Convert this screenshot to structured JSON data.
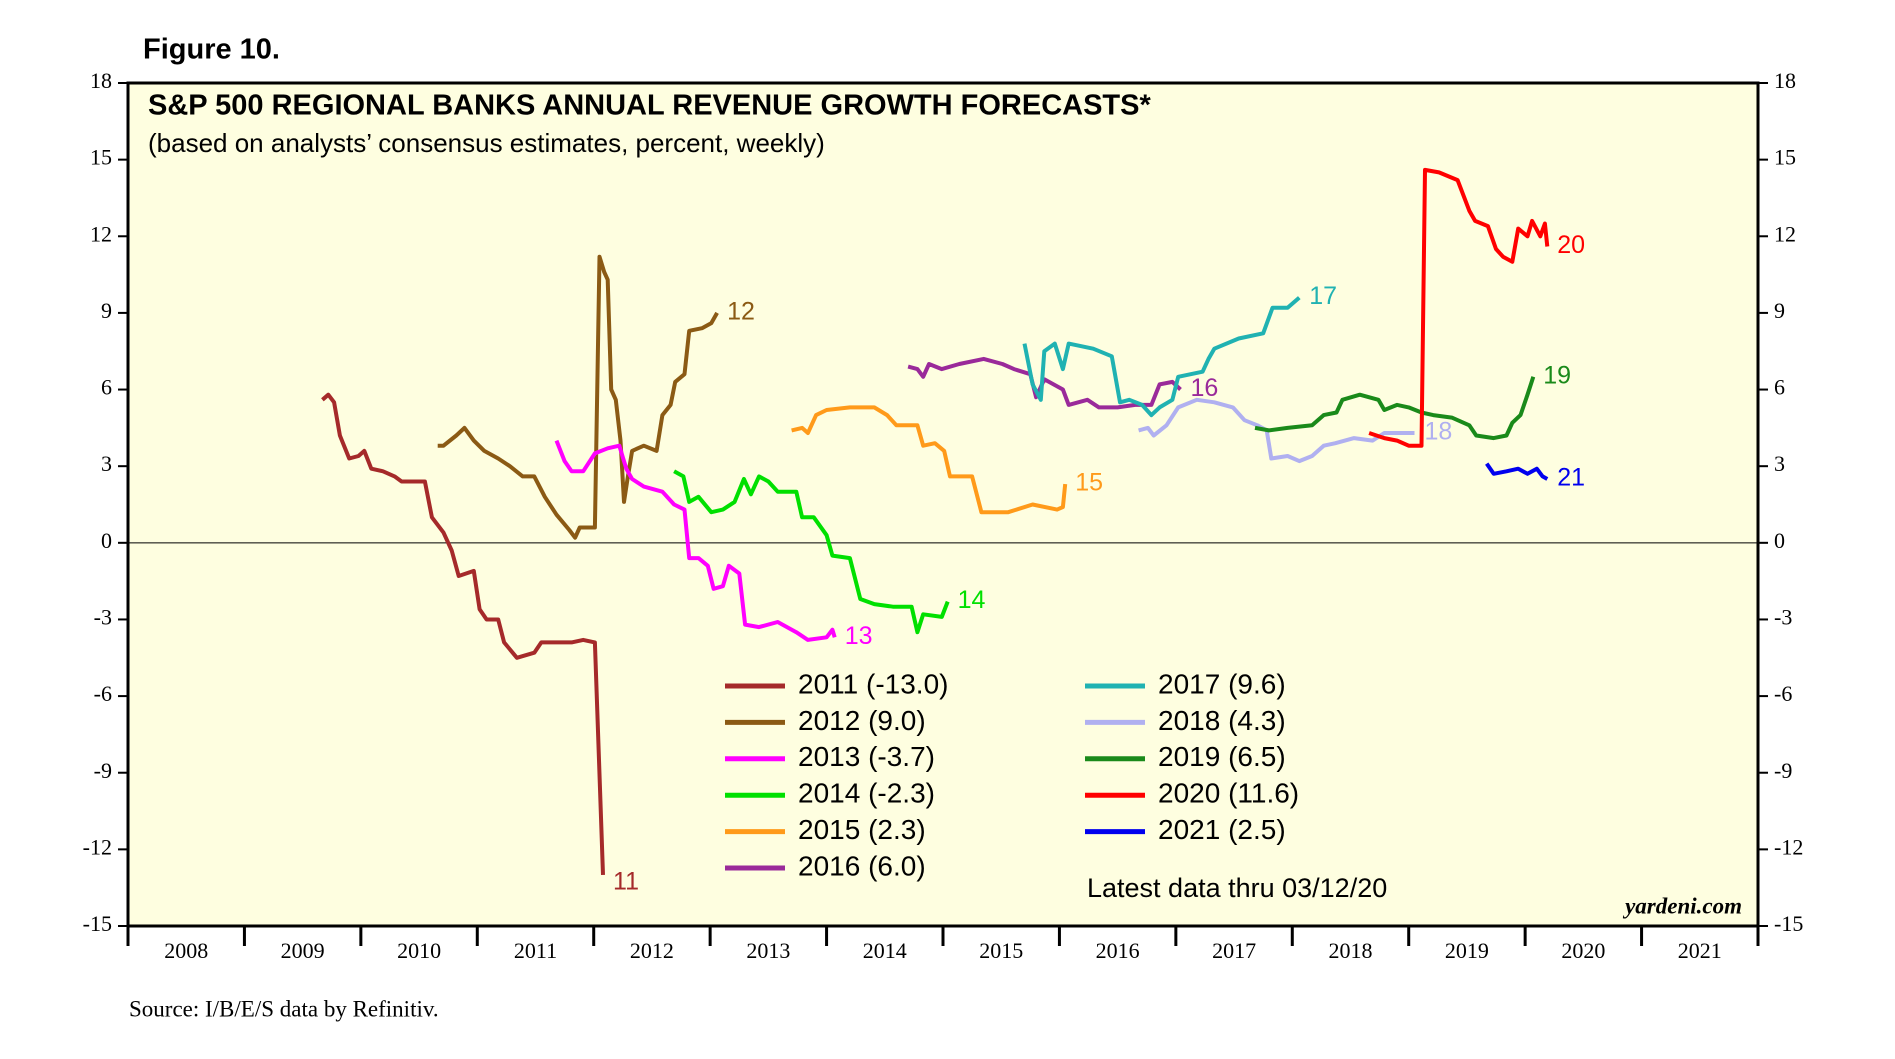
{
  "chart_data": {
    "type": "line",
    "figure_label": "Figure 10.",
    "title": "S&P 500 REGIONAL BANKS ANNUAL REVENUE GROWTH FORECASTS*",
    "subtitle": "(based on analysts’ consensus estimates, percent, weekly)",
    "annotation": "Latest data thru 03/12/20",
    "brand": "yardeni.com",
    "source": "Source: I/B/E/S data by Refinitiv.",
    "xlim": [
      2008,
      2022
    ],
    "xticks": [
      {
        "value": 2008.5,
        "label": "2008"
      },
      {
        "value": 2009.5,
        "label": "2009"
      },
      {
        "value": 2010.5,
        "label": "2010"
      },
      {
        "value": 2011.5,
        "label": "2011"
      },
      {
        "value": 2012.5,
        "label": "2012"
      },
      {
        "value": 2013.5,
        "label": "2013"
      },
      {
        "value": 2014.5,
        "label": "2014"
      },
      {
        "value": 2015.5,
        "label": "2015"
      },
      {
        "value": 2016.5,
        "label": "2016"
      },
      {
        "value": 2017.5,
        "label": "2017"
      },
      {
        "value": 2018.5,
        "label": "2018"
      },
      {
        "value": 2019.5,
        "label": "2019"
      },
      {
        "value": 2020.5,
        "label": "2020"
      },
      {
        "value": 2021.5,
        "label": "2021"
      }
    ],
    "ylim": [
      -15,
      18
    ],
    "yticks": [
      -15,
      -12,
      -9,
      -6,
      -3,
      0,
      3,
      6,
      9,
      12,
      15,
      18
    ],
    "reference_line": 0,
    "background": "#fefee0",
    "series": [
      {
        "name": "2011 (-13.0)",
        "label": "11",
        "color": "#a52a2a",
        "x": [
          2009.67,
          2009.72,
          2009.77,
          2009.82,
          2009.9,
          2009.98,
          2010.03,
          2010.09,
          2010.19,
          2010.29,
          2010.35,
          2010.55,
          2010.61,
          2010.71,
          2010.78,
          2010.84,
          2010.97,
          2011.02,
          2011.08,
          2011.18,
          2011.23,
          2011.34,
          2011.49,
          2011.55,
          2011.81,
          2011.91,
          2012.01,
          2012.08
        ],
        "values": [
          5.6,
          5.8,
          5.5,
          4.2,
          3.3,
          3.4,
          3.6,
          2.9,
          2.8,
          2.6,
          2.4,
          2.4,
          1.0,
          0.4,
          -0.3,
          -1.3,
          -1.1,
          -2.6,
          -3.0,
          -3.0,
          -3.9,
          -4.5,
          -4.3,
          -3.9,
          -3.9,
          -3.8,
          -3.9,
          -13.0
        ]
      },
      {
        "name": "2012 (9.0)",
        "label": "12",
        "color": "#8b5a14",
        "x": [
          2010.66,
          2010.71,
          2010.82,
          2010.89,
          2010.97,
          2011.06,
          2011.18,
          2011.28,
          2011.39,
          2011.49,
          2011.58,
          2011.68,
          2011.79,
          2011.84,
          2011.88,
          2012.01,
          2012.05,
          2012.09,
          2012.12,
          2012.15,
          2012.19,
          2012.23,
          2012.26,
          2012.29,
          2012.33,
          2012.43,
          2012.54,
          2012.59,
          2012.66,
          2012.7,
          2012.78,
          2012.82,
          2012.93,
          2013.01,
          2013.06
        ],
        "values": [
          3.8,
          3.8,
          4.2,
          4.5,
          4.0,
          3.6,
          3.3,
          3.0,
          2.6,
          2.6,
          1.8,
          1.1,
          0.5,
          0.2,
          0.6,
          0.6,
          11.2,
          10.6,
          10.3,
          6.0,
          5.6,
          4.0,
          1.6,
          2.5,
          3.6,
          3.8,
          3.6,
          5.0,
          5.4,
          6.3,
          6.6,
          8.3,
          8.4,
          8.6,
          9.0
        ]
      },
      {
        "name": "2013 (-3.7)",
        "label": "13",
        "color": "#ff00ff",
        "x": [
          2011.68,
          2011.75,
          2011.81,
          2011.91,
          2012.01,
          2012.12,
          2012.22,
          2012.28,
          2012.33,
          2012.43,
          2012.59,
          2012.69,
          2012.78,
          2012.82,
          2012.9,
          2012.98,
          2013.03,
          2013.11,
          2013.16,
          2013.25,
          2013.3,
          2013.42,
          2013.58,
          2013.74,
          2013.84,
          2014.0,
          2014.05,
          2014.07
        ],
        "values": [
          4.0,
          3.2,
          2.8,
          2.8,
          3.5,
          3.7,
          3.8,
          2.9,
          2.5,
          2.2,
          2.0,
          1.5,
          1.3,
          -0.6,
          -0.6,
          -0.9,
          -1.8,
          -1.7,
          -0.9,
          -1.2,
          -3.2,
          -3.3,
          -3.1,
          -3.5,
          -3.8,
          -3.7,
          -3.4,
          -3.7
        ]
      },
      {
        "name": "2014 (-2.3)",
        "label": "14",
        "color": "#00e000",
        "x": [
          2012.69,
          2012.77,
          2012.82,
          2012.9,
          2013.01,
          2013.11,
          2013.21,
          2013.29,
          2013.35,
          2013.42,
          2013.5,
          2013.58,
          2013.74,
          2013.79,
          2013.89,
          2014.0,
          2014.05,
          2014.2,
          2014.29,
          2014.41,
          2014.57,
          2014.73,
          2014.78,
          2014.83,
          2014.99,
          2015.04
        ],
        "values": [
          2.8,
          2.6,
          1.6,
          1.8,
          1.2,
          1.3,
          1.6,
          2.5,
          1.9,
          2.6,
          2.4,
          2.0,
          2.0,
          1.0,
          1.0,
          0.3,
          -0.5,
          -0.6,
          -2.2,
          -2.4,
          -2.5,
          -2.5,
          -3.5,
          -2.8,
          -2.9,
          -2.3
        ]
      },
      {
        "name": "2015 (2.3)",
        "label": "15",
        "color": "#ff9a1a",
        "x": [
          2013.7,
          2013.79,
          2013.84,
          2013.91,
          2014.0,
          2014.2,
          2014.41,
          2014.52,
          2014.6,
          2014.78,
          2014.83,
          2014.93,
          2015.01,
          2015.06,
          2015.25,
          2015.33,
          2015.56,
          2015.77,
          2015.98,
          2016.03,
          2016.05
        ],
        "values": [
          4.4,
          4.5,
          4.3,
          5.0,
          5.2,
          5.3,
          5.3,
          5.0,
          4.6,
          4.6,
          3.8,
          3.9,
          3.6,
          2.6,
          2.6,
          1.2,
          1.2,
          1.5,
          1.3,
          1.4,
          2.3
        ]
      },
      {
        "name": "2016 (6.0)",
        "label": "16",
        "color": "#9a2a9a",
        "x": [
          2014.7,
          2014.78,
          2014.83,
          2014.88,
          2014.99,
          2015.14,
          2015.35,
          2015.51,
          2015.61,
          2015.75,
          2015.8,
          2015.87,
          2016.03,
          2016.08,
          2016.24,
          2016.34,
          2016.5,
          2016.65,
          2016.79,
          2016.86,
          2016.97,
          2017.04
        ],
        "values": [
          6.9,
          6.8,
          6.5,
          7.0,
          6.8,
          7.0,
          7.2,
          7.0,
          6.8,
          6.6,
          5.7,
          6.4,
          6.0,
          5.4,
          5.6,
          5.3,
          5.3,
          5.4,
          5.4,
          6.2,
          6.3,
          6.0
        ]
      },
      {
        "name": "2017 (9.6)",
        "label": "17",
        "color": "#20b2b2",
        "x": [
          2015.7,
          2015.77,
          2015.84,
          2015.87,
          2015.96,
          2016.03,
          2016.08,
          2016.29,
          2016.45,
          2016.52,
          2016.6,
          2016.71,
          2016.79,
          2016.86,
          2016.97,
          2017.02,
          2017.23,
          2017.28,
          2017.33,
          2017.54,
          2017.75,
          2017.83,
          2017.96,
          2018.06
        ],
        "values": [
          7.8,
          6.2,
          5.6,
          7.5,
          7.8,
          6.8,
          7.8,
          7.6,
          7.3,
          5.5,
          5.6,
          5.4,
          5.0,
          5.3,
          5.6,
          6.5,
          6.7,
          7.2,
          7.6,
          8.0,
          8.2,
          9.2,
          9.2,
          9.6
        ]
      },
      {
        "name": "2018 (4.3)",
        "label": "18",
        "color": "#b0b0f0",
        "x": [
          2016.68,
          2016.76,
          2016.81,
          2016.92,
          2017.02,
          2017.18,
          2017.33,
          2017.49,
          2017.59,
          2017.7,
          2017.78,
          2017.82,
          2017.96,
          2018.06,
          2018.17,
          2018.27,
          2018.37,
          2018.53,
          2018.69,
          2018.79,
          2019.05
        ],
        "values": [
          4.4,
          4.5,
          4.2,
          4.6,
          5.3,
          5.6,
          5.5,
          5.3,
          4.8,
          4.6,
          4.4,
          3.3,
          3.4,
          3.2,
          3.4,
          3.8,
          3.9,
          4.1,
          4.0,
          4.3,
          4.3
        ]
      },
      {
        "name": "2019 (6.5)",
        "label": "19",
        "color": "#1a8a1a",
        "x": [
          2017.68,
          2017.8,
          2017.96,
          2018.17,
          2018.27,
          2018.38,
          2018.43,
          2018.58,
          2018.74,
          2018.79,
          2018.9,
          2019.0,
          2019.11,
          2019.21,
          2019.37,
          2019.52,
          2019.58,
          2019.73,
          2019.84,
          2019.89,
          2019.96,
          2020.02,
          2020.07
        ],
        "values": [
          4.5,
          4.4,
          4.5,
          4.6,
          5.0,
          5.1,
          5.6,
          5.8,
          5.6,
          5.2,
          5.4,
          5.3,
          5.1,
          5.0,
          4.9,
          4.6,
          4.2,
          4.1,
          4.2,
          4.7,
          5.0,
          5.8,
          6.5
        ]
      },
      {
        "name": "2020 (11.6)",
        "label": "20",
        "color": "#ff0000",
        "x": [
          2018.66,
          2018.79,
          2018.9,
          2019.0,
          2019.11,
          2019.14,
          2019.26,
          2019.42,
          2019.52,
          2019.57,
          2019.68,
          2019.75,
          2019.81,
          2019.89,
          2019.94,
          2020.02,
          2020.06,
          2020.13,
          2020.17,
          2020.19
        ],
        "values": [
          4.3,
          4.1,
          4.0,
          3.8,
          3.8,
          14.6,
          14.5,
          14.2,
          13.0,
          12.6,
          12.4,
          11.5,
          11.2,
          11.0,
          12.3,
          12.0,
          12.6,
          12.0,
          12.5,
          11.6
        ]
      },
      {
        "name": "2021 (2.5)",
        "label": "21",
        "color": "#0000ee",
        "x": [
          2019.67,
          2019.73,
          2019.84,
          2019.94,
          2020.02,
          2020.1,
          2020.15,
          2020.19
        ],
        "values": [
          3.1,
          2.7,
          2.8,
          2.9,
          2.7,
          2.9,
          2.6,
          2.5
        ]
      }
    ]
  }
}
